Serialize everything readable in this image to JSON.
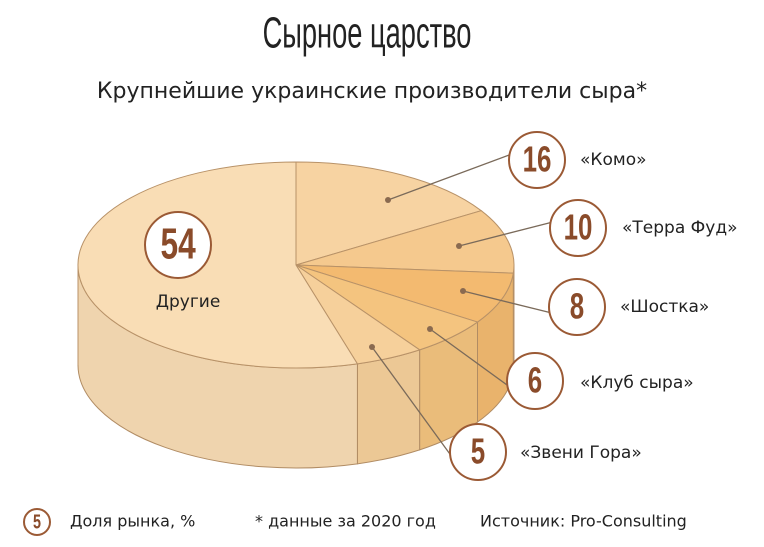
{
  "chart_data": {
    "type": "pie",
    "title": "Сырное царство",
    "subtitle": "Крупнейшие украинские производители сыра*",
    "categories": [
      "Другие",
      "«Комо»",
      "«Терра Фуд»",
      "«Шостка»",
      "«Клуб сыра»",
      "«Звени Гора»"
    ],
    "values": [
      54,
      16,
      10,
      8,
      6,
      5
    ],
    "colors": [
      "#f9ddb5",
      "#f7d3a2",
      "#f5c98e",
      "#f3ba70",
      "#f4c47f",
      "#f6d09b"
    ],
    "legend": {
      "sample": "5",
      "label": "Доля рынка, %"
    },
    "footnote": "* данные за 2020 год",
    "source": "Источник: Pro-Consulting"
  }
}
